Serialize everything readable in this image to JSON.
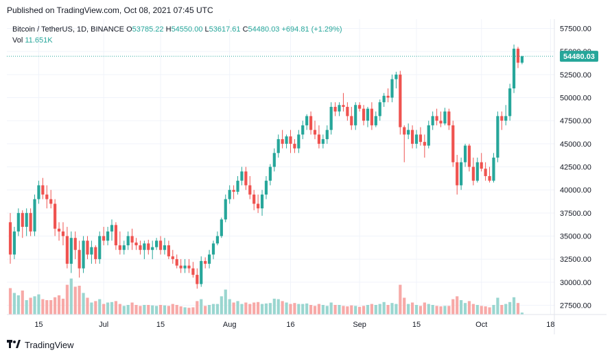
{
  "header": {
    "published": "Published on TradingView.com, Oct 08, 2021 07:45 UTC"
  },
  "legend": {
    "symbol": "Bitcoin / TetherUS, 1D, BINANCE",
    "o_label": "O",
    "o_value": "53785.22",
    "h_label": "H",
    "h_value": "54550.00",
    "l_label": "L",
    "l_value": "53617.61",
    "c_label": "C",
    "c_value": "54480.03",
    "change": "+694.81 (+1.29%)",
    "vol_label": "Vol",
    "vol_value": "11.651K"
  },
  "brand": {
    "name": "TradingView"
  },
  "colors": {
    "up": "#26a69a",
    "down": "#ef5350",
    "up_vol": "#9ad6d0",
    "down_vol": "#f7a9a7",
    "grid": "#f0f3fa",
    "axis": "#131722",
    "last_price_bg": "#26a69a"
  },
  "chart_data": {
    "type": "candlestick",
    "title": "Bitcoin / TetherUS, 1D, BINANCE",
    "ylim": [
      26500,
      58500
    ],
    "y_ticks": [
      "57500.00",
      "55000.00",
      "52500.00",
      "50000.00",
      "47500.00",
      "45000.00",
      "42500.00",
      "40000.00",
      "37500.00",
      "35000.00",
      "32500.00",
      "30000.00",
      "27500.00"
    ],
    "x_ticks": [
      {
        "label": "15",
        "index": 7
      },
      {
        "label": "Jul",
        "index": 23
      },
      {
        "label": "15",
        "index": 37
      },
      {
        "label": "Aug",
        "index": 54
      },
      {
        "label": "16",
        "index": 69
      },
      {
        "label": "Sep",
        "index": 86
      },
      {
        "label": "15",
        "index": 100
      },
      {
        "label": "Oct",
        "index": 116
      },
      {
        "label": "18",
        "index": 133
      }
    ],
    "last_price": "54480.03",
    "candles": [
      {
        "o": 36500,
        "h": 37500,
        "l": 32000,
        "c": 33000,
        "v": 0.55
      },
      {
        "o": 33000,
        "h": 36000,
        "l": 32500,
        "c": 35500,
        "v": 0.45
      },
      {
        "o": 35500,
        "h": 38000,
        "l": 35000,
        "c": 37500,
        "v": 0.4
      },
      {
        "o": 37500,
        "h": 37800,
        "l": 34800,
        "c": 36000,
        "v": 0.5
      },
      {
        "o": 36000,
        "h": 38000,
        "l": 35000,
        "c": 37500,
        "v": 0.3
      },
      {
        "o": 37500,
        "h": 38000,
        "l": 35000,
        "c": 35500,
        "v": 0.35
      },
      {
        "o": 35500,
        "h": 39500,
        "l": 35000,
        "c": 39000,
        "v": 0.38
      },
      {
        "o": 39000,
        "h": 41000,
        "l": 38500,
        "c": 40500,
        "v": 0.42
      },
      {
        "o": 40500,
        "h": 41300,
        "l": 39000,
        "c": 39500,
        "v": 0.32
      },
      {
        "o": 39500,
        "h": 40500,
        "l": 38000,
        "c": 39000,
        "v": 0.3
      },
      {
        "o": 39000,
        "h": 40000,
        "l": 38000,
        "c": 38500,
        "v": 0.3
      },
      {
        "o": 38500,
        "h": 39000,
        "l": 35000,
        "c": 35800,
        "v": 0.36
      },
      {
        "o": 35800,
        "h": 36500,
        "l": 34500,
        "c": 35500,
        "v": 0.4
      },
      {
        "o": 35500,
        "h": 36500,
        "l": 34000,
        "c": 35000,
        "v": 0.33
      },
      {
        "o": 35000,
        "h": 36000,
        "l": 31500,
        "c": 32000,
        "v": 0.62
      },
      {
        "o": 32000,
        "h": 35500,
        "l": 31000,
        "c": 34800,
        "v": 0.75
      },
      {
        "o": 34800,
        "h": 35500,
        "l": 32500,
        "c": 33500,
        "v": 0.58
      },
      {
        "o": 33500,
        "h": 34500,
        "l": 30500,
        "c": 31500,
        "v": 0.6
      },
      {
        "o": 31500,
        "h": 35000,
        "l": 31000,
        "c": 34500,
        "v": 0.45
      },
      {
        "o": 34500,
        "h": 35000,
        "l": 32500,
        "c": 33000,
        "v": 0.35
      },
      {
        "o": 33000,
        "h": 34500,
        "l": 32000,
        "c": 33800,
        "v": 0.25
      },
      {
        "o": 33800,
        "h": 34000,
        "l": 32000,
        "c": 32500,
        "v": 0.28
      },
      {
        "o": 32500,
        "h": 35500,
        "l": 32000,
        "c": 35000,
        "v": 0.32
      },
      {
        "o": 35000,
        "h": 36000,
        "l": 34000,
        "c": 34500,
        "v": 0.22
      },
      {
        "o": 34500,
        "h": 36000,
        "l": 34000,
        "c": 35500,
        "v": 0.25
      },
      {
        "o": 35500,
        "h": 36800,
        "l": 34500,
        "c": 36200,
        "v": 0.26
      },
      {
        "o": 36200,
        "h": 36500,
        "l": 33500,
        "c": 34000,
        "v": 0.28
      },
      {
        "o": 34000,
        "h": 35500,
        "l": 33000,
        "c": 33500,
        "v": 0.22
      },
      {
        "o": 33500,
        "h": 34500,
        "l": 33000,
        "c": 34000,
        "v": 0.18
      },
      {
        "o": 34000,
        "h": 35500,
        "l": 33500,
        "c": 35000,
        "v": 0.2
      },
      {
        "o": 35000,
        "h": 35800,
        "l": 33500,
        "c": 34300,
        "v": 0.25
      },
      {
        "o": 34300,
        "h": 34800,
        "l": 33500,
        "c": 34000,
        "v": 0.2
      },
      {
        "o": 34000,
        "h": 34500,
        "l": 33000,
        "c": 33500,
        "v": 0.18
      },
      {
        "o": 33500,
        "h": 34500,
        "l": 32500,
        "c": 34200,
        "v": 0.2
      },
      {
        "o": 34200,
        "h": 34600,
        "l": 33000,
        "c": 33500,
        "v": 0.2
      },
      {
        "o": 33500,
        "h": 34500,
        "l": 32500,
        "c": 33800,
        "v": 0.19
      },
      {
        "o": 33800,
        "h": 34800,
        "l": 33500,
        "c": 34500,
        "v": 0.18
      },
      {
        "o": 34500,
        "h": 35000,
        "l": 33000,
        "c": 33500,
        "v": 0.2
      },
      {
        "o": 33500,
        "h": 34800,
        "l": 33000,
        "c": 34000,
        "v": 0.19
      },
      {
        "o": 34000,
        "h": 34500,
        "l": 32500,
        "c": 32800,
        "v": 0.18
      },
      {
        "o": 32800,
        "h": 33500,
        "l": 32000,
        "c": 32500,
        "v": 0.22
      },
      {
        "o": 32500,
        "h": 33000,
        "l": 31500,
        "c": 31800,
        "v": 0.2
      },
      {
        "o": 31800,
        "h": 32500,
        "l": 31000,
        "c": 31500,
        "v": 0.17
      },
      {
        "o": 31500,
        "h": 32500,
        "l": 31000,
        "c": 31800,
        "v": 0.15
      },
      {
        "o": 31800,
        "h": 32500,
        "l": 31000,
        "c": 31500,
        "v": 0.14
      },
      {
        "o": 31500,
        "h": 32200,
        "l": 30500,
        "c": 30800,
        "v": 0.15
      },
      {
        "o": 30800,
        "h": 31500,
        "l": 29300,
        "c": 29800,
        "v": 0.28
      },
      {
        "o": 29800,
        "h": 32800,
        "l": 29500,
        "c": 32300,
        "v": 0.32
      },
      {
        "o": 32300,
        "h": 32700,
        "l": 31500,
        "c": 32000,
        "v": 0.18
      },
      {
        "o": 32000,
        "h": 33500,
        "l": 31500,
        "c": 33000,
        "v": 0.2
      },
      {
        "o": 33000,
        "h": 34500,
        "l": 32500,
        "c": 34200,
        "v": 0.22
      },
      {
        "o": 34200,
        "h": 35500,
        "l": 34000,
        "c": 35000,
        "v": 0.22
      },
      {
        "o": 35000,
        "h": 37000,
        "l": 34800,
        "c": 36800,
        "v": 0.38
      },
      {
        "o": 36800,
        "h": 39500,
        "l": 36500,
        "c": 39000,
        "v": 0.52
      },
      {
        "o": 39000,
        "h": 40500,
        "l": 38500,
        "c": 40000,
        "v": 0.32
      },
      {
        "o": 40000,
        "h": 40500,
        "l": 39000,
        "c": 39800,
        "v": 0.25
      },
      {
        "o": 39800,
        "h": 41500,
        "l": 39500,
        "c": 41000,
        "v": 0.28
      },
      {
        "o": 41000,
        "h": 42500,
        "l": 40500,
        "c": 42000,
        "v": 0.22
      },
      {
        "o": 42000,
        "h": 42500,
        "l": 40000,
        "c": 40500,
        "v": 0.25
      },
      {
        "o": 40500,
        "h": 41500,
        "l": 39000,
        "c": 39500,
        "v": 0.22
      },
      {
        "o": 39500,
        "h": 40000,
        "l": 37800,
        "c": 38500,
        "v": 0.25
      },
      {
        "o": 38500,
        "h": 39500,
        "l": 37500,
        "c": 38000,
        "v": 0.26
      },
      {
        "o": 38000,
        "h": 40000,
        "l": 37200,
        "c": 39500,
        "v": 0.22
      },
      {
        "o": 39500,
        "h": 41500,
        "l": 39000,
        "c": 41000,
        "v": 0.23
      },
      {
        "o": 41000,
        "h": 42800,
        "l": 40500,
        "c": 42500,
        "v": 0.24
      },
      {
        "o": 42500,
        "h": 44500,
        "l": 42000,
        "c": 44000,
        "v": 0.33
      },
      {
        "o": 44000,
        "h": 46000,
        "l": 43500,
        "c": 45500,
        "v": 0.32
      },
      {
        "o": 45500,
        "h": 46500,
        "l": 44500,
        "c": 45000,
        "v": 0.28
      },
      {
        "o": 45000,
        "h": 46000,
        "l": 44500,
        "c": 45800,
        "v": 0.25
      },
      {
        "o": 45800,
        "h": 46500,
        "l": 44000,
        "c": 45000,
        "v": 0.22
      },
      {
        "o": 45000,
        "h": 45500,
        "l": 44000,
        "c": 44500,
        "v": 0.24
      },
      {
        "o": 44500,
        "h": 46500,
        "l": 44000,
        "c": 46000,
        "v": 0.22
      },
      {
        "o": 46000,
        "h": 47500,
        "l": 45500,
        "c": 47000,
        "v": 0.22
      },
      {
        "o": 47000,
        "h": 48200,
        "l": 46500,
        "c": 48000,
        "v": 0.23
      },
      {
        "o": 48000,
        "h": 48500,
        "l": 46000,
        "c": 46500,
        "v": 0.2
      },
      {
        "o": 46500,
        "h": 47500,
        "l": 45500,
        "c": 46000,
        "v": 0.18
      },
      {
        "o": 46000,
        "h": 47000,
        "l": 44500,
        "c": 45000,
        "v": 0.22
      },
      {
        "o": 45000,
        "h": 46000,
        "l": 44500,
        "c": 45500,
        "v": 0.2
      },
      {
        "o": 45500,
        "h": 47000,
        "l": 45000,
        "c": 46500,
        "v": 0.18
      },
      {
        "o": 46500,
        "h": 49500,
        "l": 46000,
        "c": 49000,
        "v": 0.25
      },
      {
        "o": 49000,
        "h": 49500,
        "l": 48000,
        "c": 48500,
        "v": 0.2
      },
      {
        "o": 48500,
        "h": 49500,
        "l": 48000,
        "c": 49200,
        "v": 0.2
      },
      {
        "o": 49200,
        "h": 50500,
        "l": 48500,
        "c": 49000,
        "v": 0.18
      },
      {
        "o": 49000,
        "h": 49500,
        "l": 47500,
        "c": 48000,
        "v": 0.17
      },
      {
        "o": 48000,
        "h": 49000,
        "l": 46500,
        "c": 47000,
        "v": 0.19
      },
      {
        "o": 47000,
        "h": 49500,
        "l": 46500,
        "c": 49200,
        "v": 0.18
      },
      {
        "o": 49200,
        "h": 49500,
        "l": 48500,
        "c": 48800,
        "v": 0.16
      },
      {
        "o": 48800,
        "h": 49200,
        "l": 47000,
        "c": 47500,
        "v": 0.18
      },
      {
        "o": 47500,
        "h": 49000,
        "l": 46800,
        "c": 48800,
        "v": 0.2
      },
      {
        "o": 48800,
        "h": 49500,
        "l": 46500,
        "c": 47000,
        "v": 0.22
      },
      {
        "o": 47000,
        "h": 48500,
        "l": 46800,
        "c": 48000,
        "v": 0.2
      },
      {
        "o": 48000,
        "h": 49800,
        "l": 47500,
        "c": 49500,
        "v": 0.22
      },
      {
        "o": 49500,
        "h": 50500,
        "l": 49000,
        "c": 50200,
        "v": 0.26
      },
      {
        "o": 50200,
        "h": 51000,
        "l": 49500,
        "c": 50000,
        "v": 0.2
      },
      {
        "o": 50000,
        "h": 52500,
        "l": 49500,
        "c": 52000,
        "v": 0.24
      },
      {
        "o": 52000,
        "h": 52800,
        "l": 51000,
        "c": 52500,
        "v": 0.22
      },
      {
        "o": 52500,
        "h": 52900,
        "l": 46000,
        "c": 46800,
        "v": 0.62
      },
      {
        "o": 46800,
        "h": 47000,
        "l": 43000,
        "c": 46000,
        "v": 0.35
      },
      {
        "o": 46000,
        "h": 47200,
        "l": 45500,
        "c": 46500,
        "v": 0.22
      },
      {
        "o": 46500,
        "h": 47000,
        "l": 44500,
        "c": 45000,
        "v": 0.25
      },
      {
        "o": 45000,
        "h": 46500,
        "l": 44500,
        "c": 46000,
        "v": 0.2
      },
      {
        "o": 46000,
        "h": 46800,
        "l": 44800,
        "c": 45200,
        "v": 0.18
      },
      {
        "o": 45200,
        "h": 46000,
        "l": 43500,
        "c": 44800,
        "v": 0.25
      },
      {
        "o": 44800,
        "h": 47500,
        "l": 44500,
        "c": 47000,
        "v": 0.22
      },
      {
        "o": 47000,
        "h": 48500,
        "l": 46500,
        "c": 48000,
        "v": 0.2
      },
      {
        "o": 48000,
        "h": 48800,
        "l": 47000,
        "c": 47500,
        "v": 0.18
      },
      {
        "o": 47500,
        "h": 48500,
        "l": 46800,
        "c": 47200,
        "v": 0.17
      },
      {
        "o": 47200,
        "h": 48900,
        "l": 47000,
        "c": 48500,
        "v": 0.18
      },
      {
        "o": 48500,
        "h": 48800,
        "l": 46500,
        "c": 47000,
        "v": 0.18
      },
      {
        "o": 47000,
        "h": 47500,
        "l": 42500,
        "c": 43000,
        "v": 0.32
      },
      {
        "o": 43000,
        "h": 43800,
        "l": 39500,
        "c": 40500,
        "v": 0.38
      },
      {
        "o": 40500,
        "h": 43500,
        "l": 40000,
        "c": 43000,
        "v": 0.3
      },
      {
        "o": 43000,
        "h": 45000,
        "l": 42500,
        "c": 44800,
        "v": 0.24
      },
      {
        "o": 44800,
        "h": 45000,
        "l": 42000,
        "c": 42500,
        "v": 0.28
      },
      {
        "o": 42500,
        "h": 43500,
        "l": 40500,
        "c": 41000,
        "v": 0.22
      },
      {
        "o": 41000,
        "h": 43500,
        "l": 40800,
        "c": 43000,
        "v": 0.2
      },
      {
        "o": 43000,
        "h": 44000,
        "l": 42000,
        "c": 42300,
        "v": 0.18
      },
      {
        "o": 42300,
        "h": 43000,
        "l": 41000,
        "c": 41500,
        "v": 0.17
      },
      {
        "o": 41500,
        "h": 42500,
        "l": 40800,
        "c": 41000,
        "v": 0.15
      },
      {
        "o": 41000,
        "h": 44000,
        "l": 40800,
        "c": 43500,
        "v": 0.2
      },
      {
        "o": 43500,
        "h": 48500,
        "l": 43000,
        "c": 48000,
        "v": 0.35
      },
      {
        "o": 48000,
        "h": 48500,
        "l": 46500,
        "c": 47500,
        "v": 0.2
      },
      {
        "o": 47500,
        "h": 49200,
        "l": 47000,
        "c": 48000,
        "v": 0.22
      },
      {
        "o": 48000,
        "h": 51500,
        "l": 47500,
        "c": 51000,
        "v": 0.26
      },
      {
        "o": 51000,
        "h": 55750,
        "l": 50500,
        "c": 55300,
        "v": 0.36
      },
      {
        "o": 55300,
        "h": 55500,
        "l": 53200,
        "c": 53785,
        "v": 0.24
      },
      {
        "o": 53785.22,
        "h": 54550,
        "l": 53617.61,
        "c": 54480.03,
        "v": 0.04
      }
    ]
  }
}
